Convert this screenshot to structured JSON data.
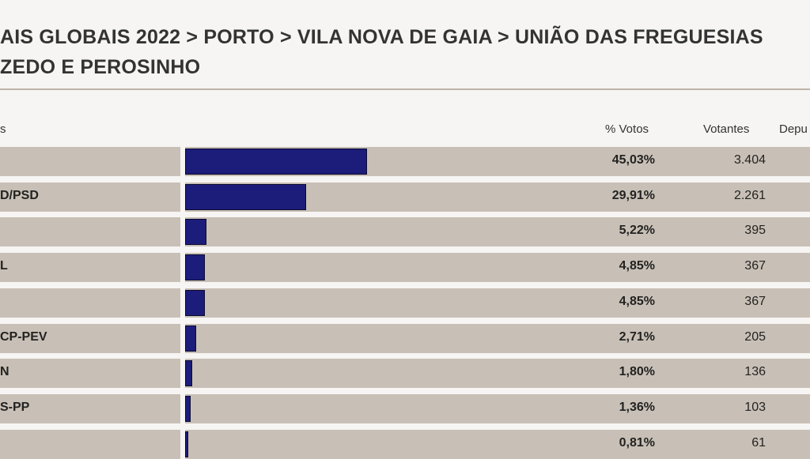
{
  "header": {
    "title_line1": "AIS GLOBAIS 2022 > PORTO > VILA NOVA DE GAIA > UNIÃO DAS FREGUESIAS",
    "title_line2": "ZEDO E PEROSINHO"
  },
  "table": {
    "col_party": "s",
    "col_pct": "% Votos",
    "col_votes": "Votantes",
    "col_seats": "Depu"
  },
  "colors": {
    "bar": "#1c1c7a",
    "track": "#c8c0b6"
  },
  "chart_data": {
    "type": "bar",
    "categories": [
      "",
      "D/PSD",
      "",
      "L",
      "",
      "CP-PEV",
      "N",
      "S-PP",
      ""
    ],
    "series": [
      {
        "values": [
          45.03,
          29.91,
          5.22,
          4.85,
          4.85,
          2.71,
          1.8,
          1.36,
          0.81
        ]
      }
    ],
    "pct_labels": [
      "45,03%",
      "29,91%",
      "5,22%",
      "4,85%",
      "4,85%",
      "2,71%",
      "1,80%",
      "1,36%",
      "0,81%"
    ],
    "votes": [
      "3.404",
      "2.261",
      "395",
      "367",
      "367",
      "205",
      "136",
      "103",
      "61"
    ],
    "xlim": [
      0,
      100
    ]
  }
}
